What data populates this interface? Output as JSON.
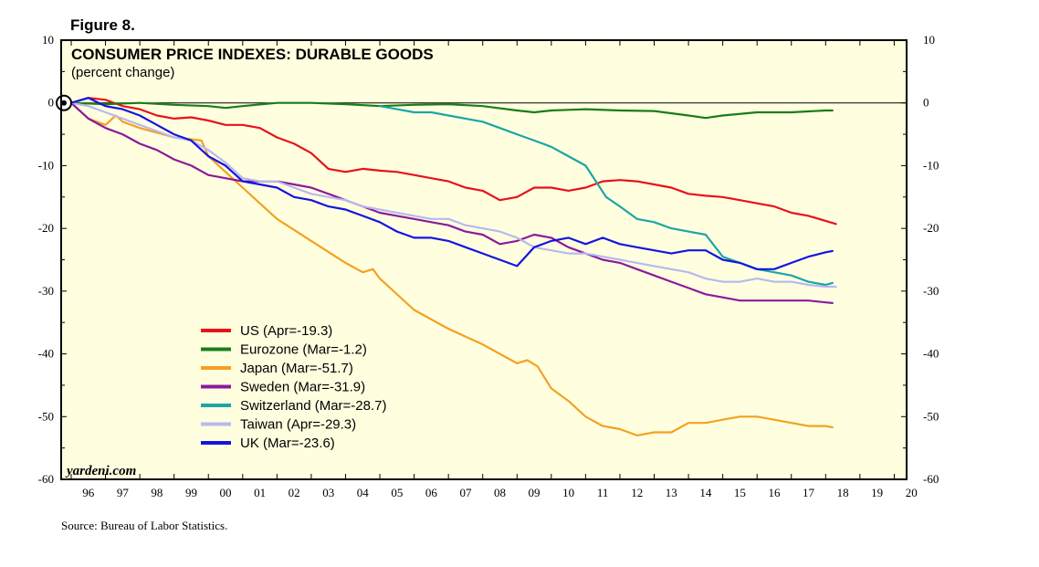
{
  "figure_label": "Figure 8.",
  "source": "Source: Bureau of Labor Statistics.",
  "watermark": "yardeni.com",
  "colors": {
    "plot_bg": "#ffffe0",
    "axis": "#000000",
    "US": "#e8111a",
    "Eurozone": "#1a7d1a",
    "Japan": "#f5a020",
    "Sweden": "#8b1a9a",
    "Switzerland": "#1aa6a6",
    "Taiwan": "#b8b8f0",
    "UK": "#1414e0"
  },
  "chart_data": {
    "type": "line",
    "title": "CONSUMER PRICE INDEXES: DURABLE GOODS",
    "subtitle": "(percent change)",
    "xlabel": "",
    "ylabel": "",
    "xlim": [
      1996,
      2021
    ],
    "ylim": [
      -60,
      10
    ],
    "y_ticks": [
      10,
      0,
      -10,
      -20,
      -30,
      -40,
      -50,
      -60
    ],
    "y_tick_labels_left": [
      "10",
      "0",
      "-10",
      "-20",
      "-30",
      "-40",
      "-50",
      "-60"
    ],
    "y_tick_labels_right": [
      "10",
      "0",
      "-10",
      "-20",
      "-30",
      "-40",
      "-50",
      "-60"
    ],
    "x_tick_labels": [
      "96",
      "97",
      "98",
      "99",
      "00",
      "01",
      "02",
      "03",
      "04",
      "05",
      "06",
      "07",
      "08",
      "09",
      "10",
      "11",
      "12",
      "13",
      "14",
      "15",
      "16",
      "17",
      "18",
      "19",
      "20"
    ],
    "baseline": 0,
    "legend_position": "center-left",
    "series": [
      {
        "name": "US",
        "legend": "US (Apr=-19.3)",
        "x": [
          1996.0,
          1996.5,
          1997.0,
          1997.5,
          1998.0,
          1998.5,
          1999.0,
          1999.5,
          2000.0,
          2000.5,
          2001.0,
          2001.5,
          2002.0,
          2002.5,
          2003.0,
          2003.5,
          2004.0,
          2004.5,
          2005.0,
          2005.5,
          2006.0,
          2006.5,
          2007.0,
          2007.5,
          2008.0,
          2008.5,
          2009.0,
          2009.5,
          2010.0,
          2010.5,
          2011.0,
          2011.5,
          2012.0,
          2012.5,
          2013.0,
          2013.5,
          2014.0,
          2014.5,
          2015.0,
          2015.5,
          2016.0,
          2016.5,
          2017.0,
          2017.5,
          2018.0,
          2018.3
        ],
        "y": [
          0.0,
          0.8,
          0.5,
          -0.5,
          -1.0,
          -2.0,
          -2.5,
          -2.3,
          -2.8,
          -3.5,
          -3.5,
          -4.0,
          -5.5,
          -6.5,
          -8.0,
          -10.5,
          -11.0,
          -10.5,
          -10.8,
          -11.0,
          -11.5,
          -12.0,
          -12.5,
          -13.5,
          -14.0,
          -15.5,
          -15.0,
          -13.5,
          -13.5,
          -14.0,
          -13.5,
          -12.5,
          -12.3,
          -12.5,
          -13.0,
          -13.5,
          -14.5,
          -14.8,
          -15.0,
          -15.5,
          -16.0,
          -16.5,
          -17.5,
          -18.0,
          -18.8,
          -19.3
        ]
      },
      {
        "name": "Eurozone",
        "legend": "Eurozone (Mar=-1.2)",
        "x": [
          1996.0,
          1997.0,
          1998.0,
          1999.0,
          2000.0,
          2000.5,
          2001.0,
          2002.0,
          2003.0,
          2004.0,
          2005.0,
          2006.0,
          2007.0,
          2008.0,
          2009.0,
          2009.5,
          2010.0,
          2011.0,
          2012.0,
          2013.0,
          2014.0,
          2014.5,
          2015.0,
          2016.0,
          2017.0,
          2018.0,
          2018.2
        ],
        "y": [
          0.0,
          -0.2,
          0.0,
          -0.3,
          -0.5,
          -0.8,
          -0.5,
          0.0,
          0.0,
          -0.2,
          -0.5,
          -0.3,
          -0.2,
          -0.5,
          -1.2,
          -1.5,
          -1.2,
          -1.0,
          -1.2,
          -1.3,
          -2.0,
          -2.4,
          -2.0,
          -1.5,
          -1.5,
          -1.2,
          -1.2
        ]
      },
      {
        "name": "Japan",
        "legend": "Japan (Mar=-51.7)",
        "x": [
          1996.0,
          1996.5,
          1997.0,
          1997.3,
          1997.5,
          1998.0,
          1999.0,
          1999.8,
          2000.0,
          2000.5,
          2001.0,
          2001.5,
          2002.0,
          2003.0,
          2004.0,
          2004.5,
          2004.8,
          2005.0,
          2006.0,
          2007.0,
          2008.0,
          2009.0,
          2009.3,
          2009.6,
          2010.0,
          2010.5,
          2011.0,
          2011.5,
          2012.0,
          2012.5,
          2013.0,
          2013.5,
          2014.0,
          2014.5,
          2015.0,
          2015.5,
          2016.0,
          2016.5,
          2017.0,
          2017.5,
          2018.0,
          2018.2
        ],
        "y": [
          0.0,
          -2.5,
          -3.5,
          -2.0,
          -3.0,
          -4.0,
          -5.5,
          -6.0,
          -8.5,
          -11.0,
          -13.5,
          -16.0,
          -18.5,
          -22.0,
          -25.5,
          -27.0,
          -26.5,
          -28.0,
          -33.0,
          -36.0,
          -38.5,
          -41.5,
          -41.0,
          -42.0,
          -45.5,
          -47.5,
          -50.0,
          -51.5,
          -52.0,
          -53.0,
          -52.5,
          -52.5,
          -51.0,
          -51.0,
          -50.5,
          -50.0,
          -50.0,
          -50.5,
          -51.0,
          -51.5,
          -51.5,
          -51.7
        ]
      },
      {
        "name": "Sweden",
        "legend": "Sweden (Mar=-31.9)",
        "x": [
          1996.0,
          1996.5,
          1997.0,
          1997.5,
          1998.0,
          1998.5,
          1999.0,
          1999.5,
          2000.0,
          2000.5,
          2001.0,
          2001.5,
          2002.0,
          2002.5,
          2003.0,
          2003.5,
          2004.0,
          2004.5,
          2005.0,
          2005.5,
          2006.0,
          2006.5,
          2007.0,
          2007.5,
          2008.0,
          2008.5,
          2009.0,
          2009.5,
          2010.0,
          2010.5,
          2011.0,
          2011.5,
          2012.0,
          2012.5,
          2013.0,
          2013.5,
          2014.0,
          2014.5,
          2015.0,
          2015.5,
          2016.0,
          2016.5,
          2017.0,
          2017.5,
          2018.0,
          2018.2
        ],
        "y": [
          0.0,
          -2.5,
          -4.0,
          -5.0,
          -6.5,
          -7.5,
          -9.0,
          -10.0,
          -11.5,
          -12.0,
          -12.5,
          -12.5,
          -12.5,
          -13.0,
          -13.5,
          -14.5,
          -15.5,
          -16.5,
          -17.5,
          -18.0,
          -18.5,
          -19.0,
          -19.5,
          -20.5,
          -21.0,
          -22.5,
          -22.0,
          -21.0,
          -21.5,
          -23.0,
          -24.0,
          -25.0,
          -25.5,
          -26.5,
          -27.5,
          -28.5,
          -29.5,
          -30.5,
          -31.0,
          -31.5,
          -31.5,
          -31.5,
          -31.5,
          -31.5,
          -31.8,
          -31.9
        ]
      },
      {
        "name": "Switzerland",
        "legend": "Switzerland (Mar=-28.7)",
        "x": [
          2005.0,
          2005.5,
          2006.0,
          2006.5,
          2007.0,
          2007.5,
          2008.0,
          2008.5,
          2009.0,
          2009.5,
          2010.0,
          2010.5,
          2011.0,
          2011.3,
          2011.6,
          2012.0,
          2012.5,
          2013.0,
          2013.5,
          2014.0,
          2014.5,
          2015.0,
          2015.5,
          2016.0,
          2016.5,
          2017.0,
          2017.5,
          2018.0,
          2018.2
        ],
        "y": [
          -0.5,
          -1.0,
          -1.5,
          -1.5,
          -2.0,
          -2.5,
          -3.0,
          -4.0,
          -5.0,
          -6.0,
          -7.0,
          -8.5,
          -10.0,
          -12.5,
          -15.0,
          -16.5,
          -18.5,
          -19.0,
          -20.0,
          -20.5,
          -21.0,
          -24.5,
          -25.5,
          -26.5,
          -27.0,
          -27.5,
          -28.5,
          -29.0,
          -28.7
        ]
      },
      {
        "name": "Taiwan",
        "legend": "Taiwan (Apr=-29.3)",
        "x": [
          1996.0,
          1996.5,
          1997.0,
          1997.5,
          1998.0,
          1998.5,
          1999.0,
          1999.5,
          2000.0,
          2000.5,
          2001.0,
          2001.5,
          2002.0,
          2002.5,
          2003.0,
          2003.5,
          2004.0,
          2004.5,
          2005.0,
          2005.5,
          2006.0,
          2006.5,
          2007.0,
          2007.5,
          2008.0,
          2008.5,
          2009.0,
          2009.5,
          2010.0,
          2010.5,
          2011.0,
          2011.5,
          2012.0,
          2012.5,
          2013.0,
          2013.5,
          2014.0,
          2014.5,
          2015.0,
          2015.5,
          2016.0,
          2016.5,
          2017.0,
          2017.5,
          2018.0,
          2018.3
        ],
        "y": [
          0.0,
          -0.5,
          -1.5,
          -2.5,
          -3.5,
          -4.5,
          -5.5,
          -6.0,
          -7.5,
          -9.5,
          -12.0,
          -12.5,
          -12.5,
          -13.5,
          -14.5,
          -15.0,
          -15.5,
          -16.5,
          -17.0,
          -17.5,
          -18.0,
          -18.5,
          -18.5,
          -19.5,
          -20.0,
          -20.5,
          -21.5,
          -23.0,
          -23.5,
          -24.0,
          -24.0,
          -24.5,
          -25.0,
          -25.5,
          -26.0,
          -26.5,
          -27.0,
          -28.0,
          -28.5,
          -28.5,
          -28.0,
          -28.5,
          -28.5,
          -29.0,
          -29.3,
          -29.3
        ]
      },
      {
        "name": "UK",
        "legend": "UK (Mar=-23.6)",
        "x": [
          1996.0,
          1996.5,
          1997.0,
          1997.5,
          1998.0,
          1998.5,
          1999.0,
          1999.5,
          2000.0,
          2000.5,
          2001.0,
          2001.5,
          2002.0,
          2002.5,
          2003.0,
          2003.5,
          2004.0,
          2004.5,
          2005.0,
          2005.5,
          2006.0,
          2006.5,
          2007.0,
          2007.5,
          2008.0,
          2008.5,
          2009.0,
          2009.5,
          2010.0,
          2010.5,
          2011.0,
          2011.5,
          2012.0,
          2012.5,
          2013.0,
          2013.5,
          2014.0,
          2014.5,
          2015.0,
          2015.5,
          2016.0,
          2016.5,
          2017.0,
          2017.5,
          2018.0,
          2018.2
        ],
        "y": [
          0.0,
          0.8,
          -0.5,
          -1.0,
          -2.0,
          -3.5,
          -5.0,
          -6.0,
          -8.5,
          -10.0,
          -12.5,
          -13.0,
          -13.5,
          -15.0,
          -15.5,
          -16.5,
          -17.0,
          -18.0,
          -19.0,
          -20.5,
          -21.5,
          -21.5,
          -22.0,
          -23.0,
          -24.0,
          -25.0,
          -26.0,
          -23.0,
          -22.0,
          -21.5,
          -22.5,
          -21.5,
          -22.5,
          -23.0,
          -23.5,
          -24.0,
          -23.5,
          -23.5,
          -25.0,
          -25.5,
          -26.5,
          -26.5,
          -25.5,
          -24.5,
          -23.8,
          -23.6
        ]
      }
    ]
  }
}
